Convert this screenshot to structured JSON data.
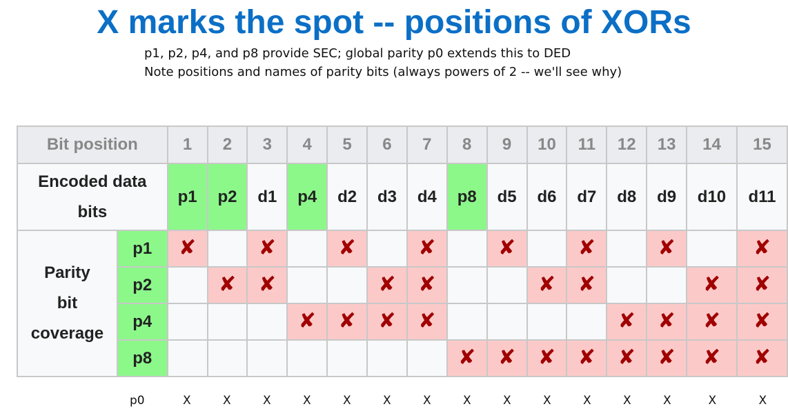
{
  "title": "X marks the spot -- positions of XORs",
  "subtitle_lines": [
    "p1, p2, p4, and p8 provide SEC; global parity p0 extends this to DED",
    "Note positions and names of parity bits (always powers of 2 -- we'll see why)"
  ],
  "table": {
    "header_label": "Bit position",
    "positions": [
      "1",
      "2",
      "3",
      "4",
      "5",
      "6",
      "7",
      "8",
      "9",
      "10",
      "11",
      "12",
      "13",
      "14",
      "15"
    ],
    "encoded_label": "Encoded data bits",
    "encoded_bits": [
      "p1",
      "p2",
      "d1",
      "p4",
      "d2",
      "d3",
      "d4",
      "p8",
      "d5",
      "d6",
      "d7",
      "d8",
      "d9",
      "d10",
      "d11"
    ],
    "parity_positions": [
      1,
      2,
      4,
      8
    ],
    "coverage_label": "Parity bit coverage",
    "coverage_label_lines": [
      "Parity",
      "bit",
      "coverage"
    ],
    "mark_symbol": "✘",
    "coverage_rows": [
      {
        "name": "p1",
        "covered": [
          1,
          3,
          5,
          7,
          9,
          11,
          13,
          15
        ]
      },
      {
        "name": "p2",
        "covered": [
          2,
          3,
          6,
          7,
          10,
          11,
          14,
          15
        ]
      },
      {
        "name": "p4",
        "covered": [
          4,
          5,
          6,
          7,
          12,
          13,
          14,
          15
        ]
      },
      {
        "name": "p8",
        "covered": [
          8,
          9,
          10,
          11,
          12,
          13,
          14,
          15
        ]
      }
    ],
    "colors": {
      "parity_cell": "#8cf88a",
      "covered_cell": "#fcc9c9",
      "mark": "#a00000",
      "header_bg": "#eaecf0",
      "title": "#0b6fc6"
    }
  },
  "p0_row": {
    "label": "p0",
    "mark": "X",
    "covered": [
      1,
      2,
      3,
      4,
      5,
      6,
      7,
      8,
      9,
      10,
      11,
      12,
      13,
      14,
      15
    ]
  }
}
